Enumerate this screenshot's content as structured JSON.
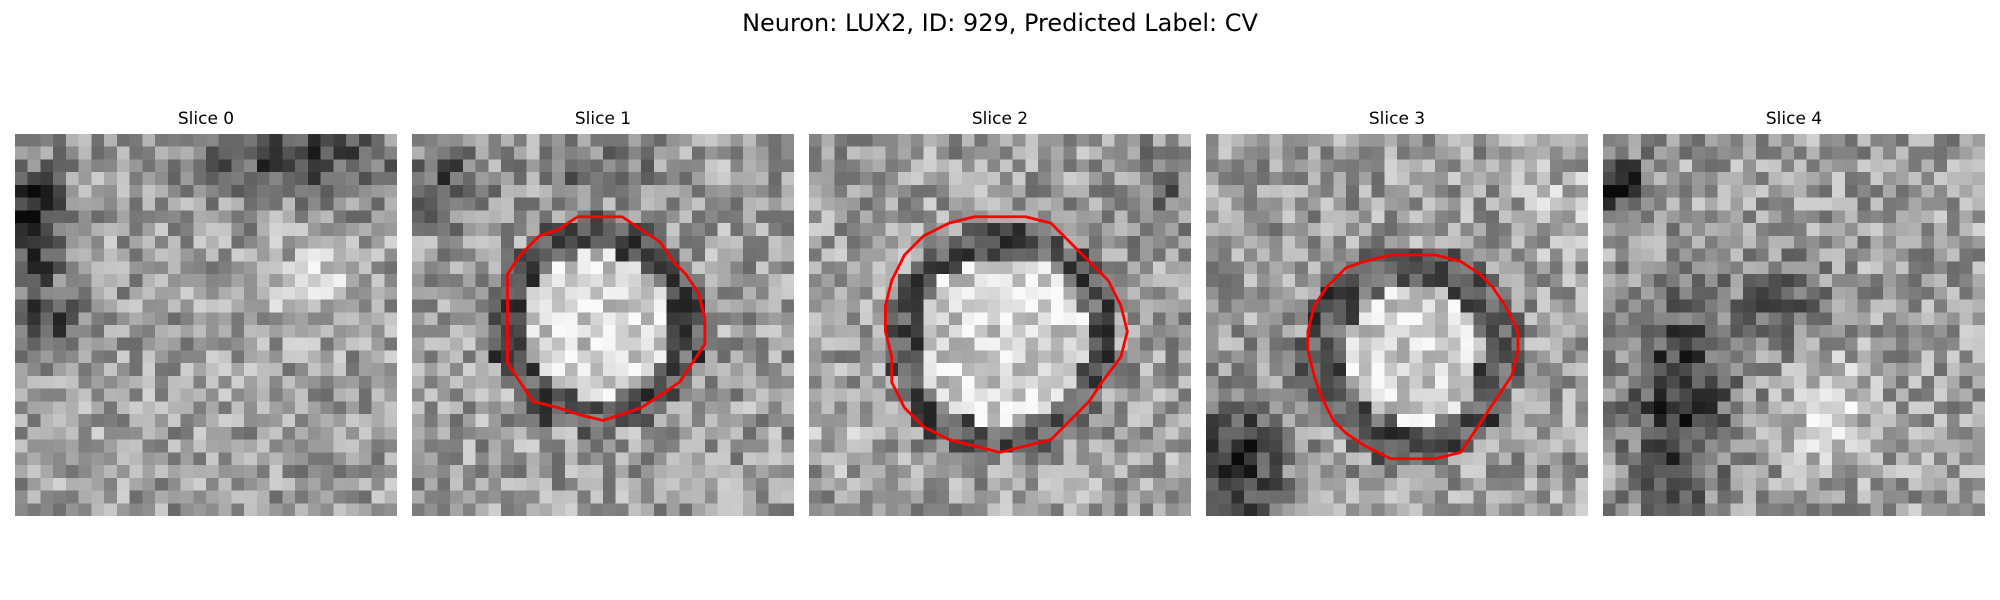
{
  "figure": {
    "title": "Neuron: LUX2, ID: 929, Predicted Label: CV",
    "contour_color": "#ff0000",
    "colormap": "gray",
    "slices": [
      {
        "label": "Slice 0",
        "has_contour": false
      },
      {
        "label": "Slice 1",
        "has_contour": true
      },
      {
        "label": "Slice 2",
        "has_contour": true
      },
      {
        "label": "Slice 3",
        "has_contour": true
      },
      {
        "label": "Slice 4",
        "has_contour": false
      }
    ]
  }
}
